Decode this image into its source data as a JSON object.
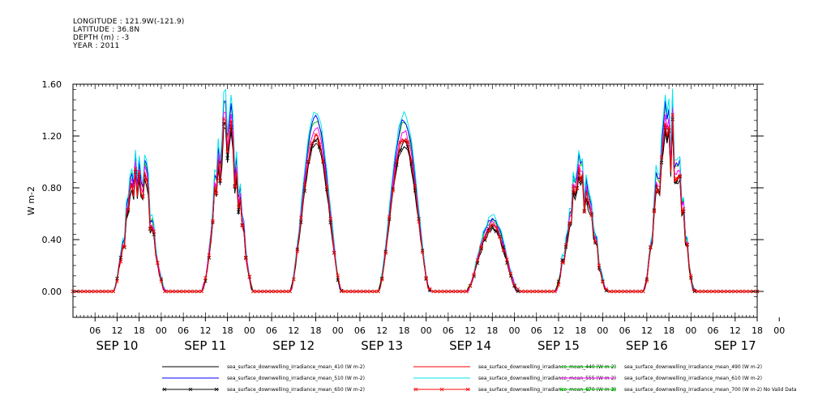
{
  "header": {
    "longitude": "LONGITUDE : 121.9W(-121.9)",
    "latitude": "LATITUDE : 36.8N",
    "depth": "DEPTH (m) : -3",
    "year": "YEAR : 2011"
  },
  "chart_data": {
    "type": "line",
    "title": "",
    "ylabel": "W m-2",
    "xlabel": "",
    "ylim": [
      -0.2,
      1.6
    ],
    "yticks": [
      0.0,
      0.4,
      0.8,
      1.2,
      1.6
    ],
    "ytick_labels": [
      "0.00",
      "0.40",
      "0.80",
      "1.20",
      "1.60"
    ],
    "x_range_hours": [
      0,
      186
    ],
    "hour_ticks": [
      "06",
      "12",
      "18",
      "00",
      "06",
      "12",
      "18",
      "00",
      "06",
      "12",
      "18",
      "00",
      "06",
      "12",
      "18",
      "00",
      "06",
      "12",
      "18",
      "00",
      "06",
      "12",
      "18",
      "00",
      "06",
      "12",
      "18",
      "00",
      "06",
      "12",
      "18",
      "00"
    ],
    "date_labels": [
      "SEP 10",
      "SEP 11",
      "SEP 12",
      "SEP 13",
      "SEP 14",
      "SEP 15",
      "SEP 16",
      "SEP 17"
    ],
    "days": [
      {
        "start": 11,
        "end": 25,
        "peak": 0.9,
        "noisy": true
      },
      {
        "start": 35,
        "end": 49,
        "peak": 1.2,
        "noisy": true
      },
      {
        "start": 59,
        "end": 73,
        "peak": 1.2,
        "noisy": false
      },
      {
        "start": 83,
        "end": 97,
        "peak": 1.18,
        "noisy": false
      },
      {
        "start": 107,
        "end": 121,
        "peak": 0.5,
        "noisy": false
      },
      {
        "start": 131,
        "end": 145,
        "peak": 0.85,
        "noisy": true
      },
      {
        "start": 155,
        "end": 169,
        "peak": 1.2,
        "noisy": true
      }
    ],
    "series": [
      {
        "name": "sea_surface_downwelling_irradiance_mean_410 (W m-2)",
        "color": "#000000",
        "scale": 0.95,
        "marker": false
      },
      {
        "name": "sea_surface_downwelling_irradiance_mean_440 (W m-2)",
        "color": "#ff0000",
        "scale": 1.0,
        "marker": false
      },
      {
        "name": "sea_surface_downwelling_irradiance_mean_490 (W m-2)",
        "color": "#00cc00",
        "scale": 1.1,
        "marker": false
      },
      {
        "name": "sea_surface_downwelling_irradiance_mean_510 (W m-2)",
        "color": "#0000ff",
        "scale": 1.12,
        "marker": false
      },
      {
        "name": "sea_surface_downwelling_irradiance_mean_555 (W m-2)",
        "color": "#00e5ee",
        "scale": 1.16,
        "marker": false
      },
      {
        "name": "sea_surface_downwelling_irradiance_mean_610 (W m-2)",
        "color": "#ff00ff",
        "scale": 1.05,
        "marker": false
      },
      {
        "name": "sea_surface_downwelling_irradiance_mean_650 (W m-2)",
        "color": "#000000",
        "scale": 0.98,
        "marker": true
      },
      {
        "name": "sea_surface_downwelling_irradiance_mean_670 (W m-2)",
        "color": "#ff0000",
        "scale": 1.0,
        "marker": true
      },
      {
        "name": "sea_surface_downwelling_irradiance_mean_700 (W m-2) No Valid Data",
        "color": "#00cc00",
        "scale": 0,
        "marker": true
      }
    ]
  }
}
